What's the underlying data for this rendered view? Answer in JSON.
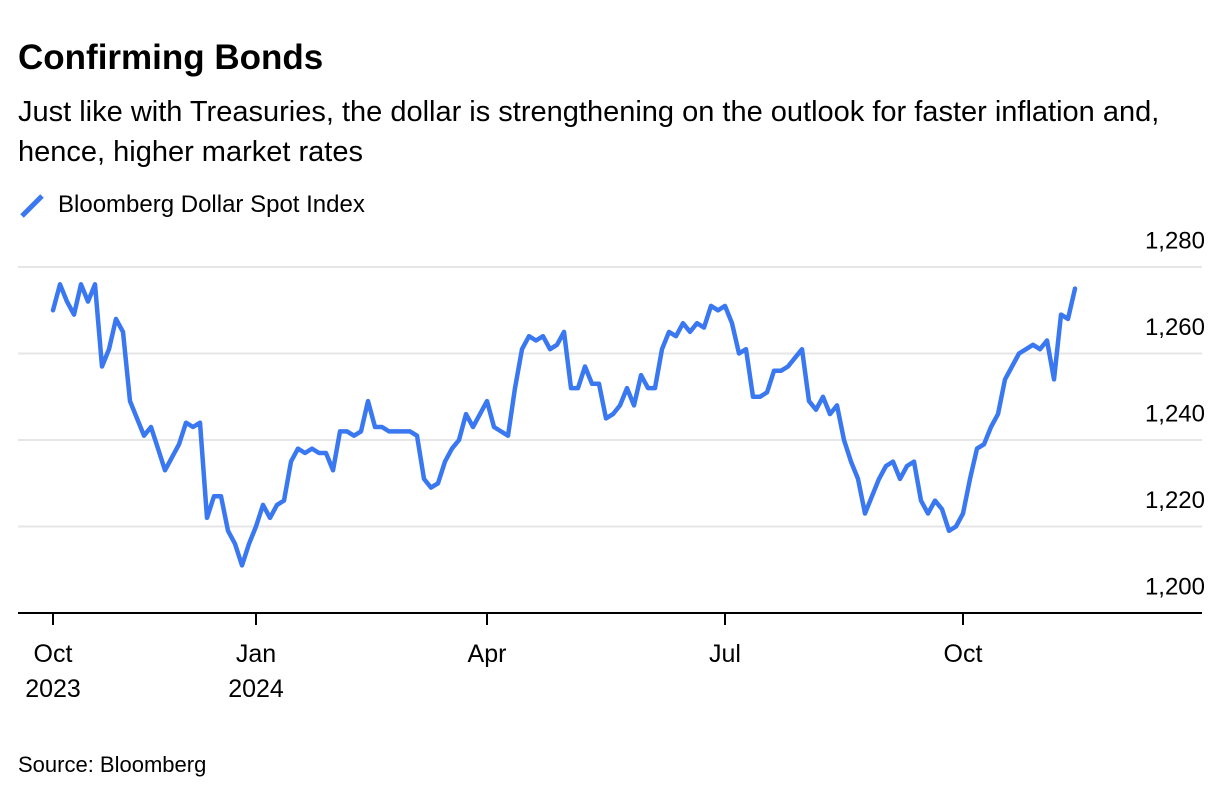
{
  "chart_data": {
    "type": "line",
    "title": "Confirming Bonds",
    "subtitle": "Just like with Treasuries, the dollar is strengthening on the outlook for faster inflation and, hence, higher market rates",
    "source": "Source: Bloomberg",
    "categories": [
      "Oct 2023",
      null,
      null,
      null,
      null,
      null,
      null,
      null,
      null,
      null,
      null,
      null,
      null,
      null,
      null,
      null,
      null,
      null,
      null,
      null,
      null,
      null,
      null,
      null,
      null,
      null,
      null,
      null,
      null,
      "Jan 2024",
      null,
      null,
      null,
      null,
      null,
      null,
      null,
      null,
      null,
      null,
      null,
      null,
      null,
      null,
      null,
      null,
      null,
      null,
      null,
      null,
      null,
      null,
      null,
      null,
      null,
      null,
      null,
      null,
      null,
      null,
      null,
      null,
      "Apr",
      null,
      null,
      null,
      null,
      null,
      null,
      null,
      null,
      null,
      null,
      null,
      null,
      null,
      null,
      null,
      null,
      null,
      null,
      null,
      null,
      null,
      null,
      null,
      null,
      null,
      null,
      null,
      null,
      null,
      null,
      null,
      null,
      null,
      "Jul",
      null,
      null,
      null,
      null,
      null,
      null,
      null,
      null,
      null,
      null,
      null,
      null,
      null,
      null,
      null,
      null,
      null,
      null,
      null,
      null,
      null,
      null,
      null,
      null,
      null,
      null,
      null,
      null,
      null,
      null,
      null,
      null,
      null,
      "Oct",
      null,
      null,
      null,
      null,
      null,
      null,
      null,
      null,
      null,
      null,
      null,
      null,
      null,
      null,
      null,
      null
    ],
    "series": [
      {
        "name": "Bloomberg Dollar Spot Index",
        "color": "#3a78f2",
        "values": [
          1270,
          1276,
          1272,
          1269,
          1276,
          1272,
          1276,
          1257,
          1261,
          1268,
          1265,
          1249,
          1245,
          1241,
          1243,
          1238,
          1233,
          1236,
          1239,
          1244,
          1243,
          1244,
          1222,
          1227,
          1227,
          1219,
          1216,
          1211,
          1216,
          1220,
          1225,
          1222,
          1225,
          1226,
          1235,
          1238,
          1237,
          1238,
          1237,
          1237,
          1233,
          1242,
          1242,
          1241,
          1242,
          1249,
          1243,
          1243,
          1242,
          1242,
          1242,
          1242,
          1241,
          1231,
          1229,
          1230,
          1235,
          1238,
          1240,
          1246,
          1243,
          1246,
          1249,
          1243,
          1242,
          1241,
          1252,
          1261,
          1264,
          1263,
          1264,
          1261,
          1262,
          1265,
          1252,
          1252,
          1257,
          1253,
          1253,
          1245,
          1246,
          1248,
          1252,
          1248,
          1255,
          1252,
          1252,
          1261,
          1265,
          1264,
          1267,
          1265,
          1267,
          1266,
          1271,
          1270,
          1271,
          1267,
          1260,
          1261,
          1250,
          1250,
          1251,
          1256,
          1256,
          1257,
          1259,
          1261,
          1249,
          1247,
          1250,
          1246,
          1248,
          1240,
          1235,
          1231,
          1223,
          1227,
          1231,
          1234,
          1235,
          1231,
          1234,
          1235,
          1226,
          1223,
          1226,
          1224,
          1219,
          1220,
          1223,
          1231,
          1238,
          1239,
          1243,
          1246,
          1254,
          1257,
          1260,
          1261,
          1262,
          1261,
          1263,
          1254,
          1269,
          1268,
          1275
        ]
      }
    ],
    "ylim": [
      1200,
      1280
    ],
    "yticks": [
      {
        "value": 1200,
        "label": "1,200"
      },
      {
        "value": 1220,
        "label": "1,220"
      },
      {
        "value": 1240,
        "label": "1,240"
      },
      {
        "value": 1260,
        "label": "1,260"
      },
      {
        "value": 1280,
        "label": "1,280"
      }
    ],
    "grid": true
  }
}
